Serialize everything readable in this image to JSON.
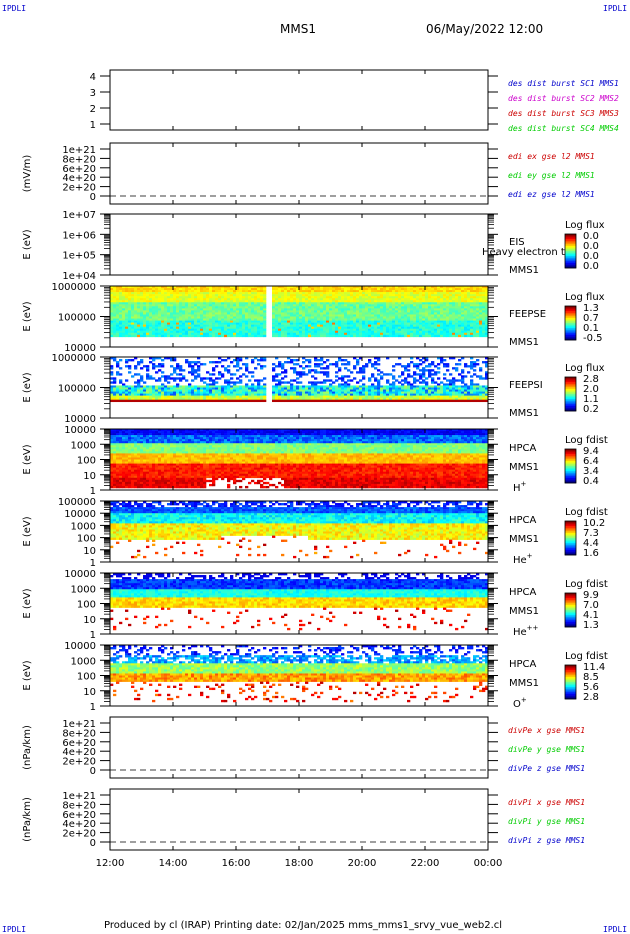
{
  "corners": {
    "tl": "IPDLI",
    "tr": "IPDLI",
    "bl": "IPDLI",
    "br": "IPDLI"
  },
  "header": {
    "spacecraft": "MMS1",
    "datetime": "06/May/2022 12:00"
  },
  "footer": {
    "text": "Produced by cl (IRAP)   Printing date: 02/Jan/2025   mms_mms1_srvy_vue_web2.cl"
  },
  "colors": {
    "blue": "#0000cc",
    "magenta": "#cc00cc",
    "red": "#cc0000",
    "green": "#00cc00"
  },
  "chart_data": {
    "type": "heatmap",
    "x": {
      "start": 12,
      "end": 24,
      "ticks": [
        "12:00",
        "14:00",
        "16:00",
        "18:00",
        "20:00",
        "22:00",
        "00:00"
      ],
      "unit": "UT hours"
    },
    "panels": [
      {
        "kind": "line",
        "ylabel": "",
        "yticks": [
          "4",
          "3",
          "2",
          "1"
        ],
        "ylim": [
          0.5,
          4.5
        ],
        "legend": [
          {
            "text": "des dist burst SC1 MMS1",
            "color": "blue"
          },
          {
            "text": "des dist burst SC2 MMS2",
            "color": "magenta"
          },
          {
            "text": "des dist burst SC3 MMS3",
            "color": "red"
          },
          {
            "text": "des dist burst SC4 MMS4",
            "color": "green"
          }
        ]
      },
      {
        "kind": "line",
        "ylabel": "(mV/m)",
        "yticks": [
          "1e+21",
          "8e+20",
          "6e+20",
          "4e+20",
          "2e+20",
          "0"
        ],
        "ylim": [
          -2e+20,
          1.1e+21
        ],
        "legend": [
          {
            "text": "edi ex gse l2 MMS1",
            "color": "red"
          },
          {
            "text": "edi ey gse l2 MMS1",
            "color": "green"
          },
          {
            "text": "edi ez gse l2 MMS1",
            "color": "blue"
          }
        ]
      },
      {
        "kind": "spec",
        "ylabel": "E (eV)",
        "yticks": [
          "1e+07",
          "1e+06",
          "1e+05",
          "1e+04"
        ],
        "log": true,
        "ylim": [
          10000.0,
          10000000.0
        ],
        "labels": [
          "EIS",
          "MMS1"
        ],
        "overlay": "Heavy electron to",
        "cb_title": "Log flux",
        "cb_ticks": [
          "0.0",
          "0.0",
          "0.0",
          "0.0"
        ],
        "style": "empty"
      },
      {
        "kind": "spec",
        "ylabel": "E (eV)",
        "yticks": [
          "1000000",
          "100000",
          "10000"
        ],
        "log": true,
        "ylim": [
          10000.0,
          1000000.0
        ],
        "labels": [
          "FEEPSE",
          "MMS1"
        ],
        "cb_title": "Log flux",
        "cb_ticks": [
          "1.3",
          "0.7",
          "0.1",
          "-0.5"
        ],
        "style": "feepse",
        "gap": 17.0
      },
      {
        "kind": "spec",
        "ylabel": "E (eV)",
        "yticks": [
          "1000000",
          "100000",
          "10000"
        ],
        "log": true,
        "ylim": [
          10000.0,
          1000000.0
        ],
        "labels": [
          "FEEPSI",
          "MMS1"
        ],
        "cb_title": "Log flux",
        "cb_ticks": [
          "2.8",
          "2.0",
          "1.1",
          "0.2"
        ],
        "style": "feepsi",
        "gap": 17.0
      },
      {
        "kind": "spec",
        "ylabel": "E (eV)",
        "yticks": [
          "10000",
          "1000",
          "100",
          "10",
          "1"
        ],
        "log": true,
        "ylim": [
          1,
          30000.0
        ],
        "labels": [
          "HPCA",
          "MMS1"
        ],
        "species": "H",
        "sup": "+",
        "cb_title": "Log fdist",
        "cb_ticks": [
          "9.4",
          "6.4",
          "3.4",
          "0.4"
        ],
        "style": "hplus"
      },
      {
        "kind": "spec",
        "ylabel": "E (eV)",
        "yticks": [
          "100000",
          "10000",
          "1000",
          "100",
          "10",
          "1"
        ],
        "log": true,
        "ylim": [
          1,
          100000.0
        ],
        "labels": [
          "HPCA",
          "MMS1"
        ],
        "species": "He",
        "sup": "+",
        "cb_title": "Log fdist",
        "cb_ticks": [
          "10.2",
          "7.3",
          "4.4",
          "1.6"
        ],
        "style": "heplus"
      },
      {
        "kind": "spec",
        "ylabel": "E (eV)",
        "yticks": [
          "10000",
          "1000",
          "100",
          "10",
          "1"
        ],
        "log": true,
        "ylim": [
          1,
          30000.0
        ],
        "labels": [
          "HPCA",
          "MMS1"
        ],
        "species": "He",
        "sup": "++",
        "cb_title": "Log fdist",
        "cb_ticks": [
          "9.9",
          "7.0",
          "4.1",
          "1.3"
        ],
        "style": "hepp"
      },
      {
        "kind": "spec",
        "ylabel": "E (eV)",
        "yticks": [
          "10000",
          "1000",
          "100",
          "10",
          "1"
        ],
        "log": true,
        "ylim": [
          1,
          30000.0
        ],
        "labels": [
          "HPCA",
          "MMS1"
        ],
        "species": "O",
        "sup": "+",
        "cb_title": "Log fdist",
        "cb_ticks": [
          "11.4",
          "8.5",
          "5.6",
          "2.8"
        ],
        "style": "oplus"
      },
      {
        "kind": "line",
        "ylabel": "(nPa/km)",
        "yticks": [
          "1e+21",
          "8e+20",
          "6e+20",
          "4e+20",
          "2e+20",
          "0"
        ],
        "ylim": [
          -2e+20,
          1.1e+21
        ],
        "legend": [
          {
            "text": "divPe x gse MMS1",
            "color": "red"
          },
          {
            "text": "divPe y gse MMS1",
            "color": "green"
          },
          {
            "text": "divPe z gse MMS1",
            "color": "blue"
          }
        ]
      },
      {
        "kind": "line",
        "ylabel": "(nPa/km)",
        "yticks": [
          "1e+21",
          "8e+20",
          "6e+20",
          "4e+20",
          "2e+20",
          "0"
        ],
        "ylim": [
          -2e+20,
          1.1e+21
        ],
        "legend": [
          {
            "text": "divPi x gse MMS1",
            "color": "red"
          },
          {
            "text": "divPi y gse MMS1",
            "color": "green"
          },
          {
            "text": "divPi z gse MMS1",
            "color": "blue"
          }
        ]
      }
    ]
  }
}
